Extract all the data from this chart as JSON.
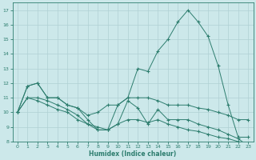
{
  "xlabel": "Humidex (Indice chaleur)",
  "x": [
    0,
    1,
    2,
    3,
    4,
    5,
    6,
    7,
    8,
    9,
    10,
    11,
    12,
    13,
    14,
    15,
    16,
    17,
    18,
    19,
    20,
    21,
    22,
    23
  ],
  "line_big": [
    10,
    11.8,
    12.0,
    11.0,
    11.0,
    10.5,
    10.3,
    9.5,
    8.8,
    8.8,
    10.5,
    11.0,
    13.0,
    12.8,
    14.2,
    15.0,
    16.2,
    17.0,
    16.2,
    15.2,
    13.2,
    10.5,
    8.3,
    8.3
  ],
  "line_mid": [
    10,
    11.8,
    12.0,
    11.0,
    11.0,
    10.5,
    10.3,
    9.8,
    10.0,
    10.5,
    10.5,
    11.0,
    11.0,
    11.0,
    10.8,
    10.5,
    10.5,
    10.5,
    10.3,
    10.2,
    10.0,
    9.8,
    9.5,
    9.5
  ],
  "line_low1": [
    10,
    11.0,
    11.0,
    10.8,
    10.5,
    10.2,
    9.8,
    9.2,
    8.8,
    8.8,
    9.2,
    10.8,
    10.3,
    9.2,
    10.2,
    9.5,
    9.5,
    9.5,
    9.2,
    9.0,
    8.8,
    8.5,
    8.2,
    7.7
  ],
  "line_low2": [
    10,
    11.0,
    10.8,
    10.5,
    10.2,
    10.0,
    9.5,
    9.2,
    9.0,
    8.8,
    9.2,
    9.5,
    9.5,
    9.3,
    9.5,
    9.2,
    9.0,
    8.8,
    8.7,
    8.5,
    8.3,
    8.2,
    8.0,
    7.7
  ],
  "color": "#2d7d6e",
  "bg_color": "#cce8ea",
  "grid_color": "#b0d0d4",
  "ylim": [
    8,
    17.5
  ],
  "xlim": [
    -0.5,
    23.5
  ],
  "yticks": [
    8,
    9,
    10,
    11,
    12,
    13,
    14,
    15,
    16,
    17
  ],
  "xticks": [
    0,
    1,
    2,
    3,
    4,
    5,
    6,
    7,
    8,
    9,
    10,
    11,
    12,
    13,
    14,
    15,
    16,
    17,
    18,
    19,
    20,
    21,
    22,
    23
  ]
}
